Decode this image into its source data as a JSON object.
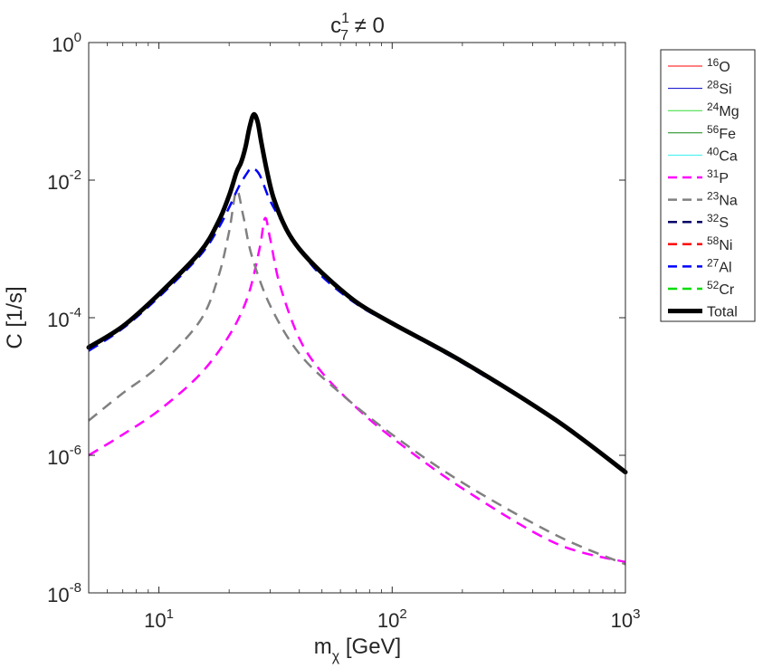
{
  "chart_data": {
    "type": "line",
    "title_base": "c",
    "title_sub": "7",
    "title_sup": "1",
    "title_rest": " ≠ 0",
    "xlabel_base": "m",
    "xlabel_sub": "χ",
    "xlabel_rest": " [GeV]",
    "ylabel": "C [1/s]",
    "xscale": "log",
    "yscale": "log",
    "xlim": [
      5,
      1000
    ],
    "ylim": [
      1e-08,
      1
    ],
    "x_ticks": [
      {
        "value": 10,
        "base": "10",
        "exp": "1"
      },
      {
        "value": 100,
        "base": "10",
        "exp": "2"
      },
      {
        "value": 1000,
        "base": "10",
        "exp": "3"
      }
    ],
    "y_ticks": [
      {
        "value": 1,
        "base": "10",
        "exp": "0"
      },
      {
        "value": 0.01,
        "base": "10",
        "exp": "-2"
      },
      {
        "value": 0.0001,
        "base": "10",
        "exp": "-4"
      },
      {
        "value": 1e-06,
        "base": "10",
        "exp": "-6"
      },
      {
        "value": 1e-08,
        "base": "10",
        "exp": "-8"
      }
    ],
    "legend_position": "outside-right",
    "series": [
      {
        "name": "O",
        "mass": "16",
        "color": "#ff0000",
        "style": "solid",
        "width": 1,
        "values": []
      },
      {
        "name": "Si",
        "mass": "28",
        "color": "#0000cc",
        "style": "solid",
        "width": 1,
        "values": []
      },
      {
        "name": "Mg",
        "mass": "24",
        "color": "#33dd33",
        "style": "solid",
        "width": 1,
        "values": []
      },
      {
        "name": "Fe",
        "mass": "56",
        "color": "#118811",
        "style": "solid",
        "width": 1,
        "values": []
      },
      {
        "name": "Ca",
        "mass": "40",
        "color": "#33eeee",
        "style": "solid",
        "width": 1,
        "values": []
      },
      {
        "name": "P",
        "mass": "31",
        "color": "#ff00ff",
        "style": "dashed",
        "width": 2.5,
        "values": [
          [
            5,
            1e-06
          ],
          [
            7,
            2e-06
          ],
          [
            10,
            4.5e-06
          ],
          [
            15,
            1.5e-05
          ],
          [
            20,
            5.5e-05
          ],
          [
            24,
            0.0002
          ],
          [
            27,
            0.001
          ],
          [
            28.5,
            0.0028
          ],
          [
            30,
            0.0014
          ],
          [
            33,
            0.0003
          ],
          [
            40,
            5e-05
          ],
          [
            50,
            1.6e-05
          ],
          [
            70,
            5e-06
          ],
          [
            100,
            1.8e-06
          ],
          [
            200,
            3.3e-07
          ],
          [
            500,
            5.3e-08
          ],
          [
            1000,
            2.8e-08
          ]
        ]
      },
      {
        "name": "Na",
        "mass": "23",
        "color": "#808080",
        "style": "dashed",
        "width": 2.5,
        "values": [
          [
            5,
            3.2e-06
          ],
          [
            7,
            8e-06
          ],
          [
            10,
            2e-05
          ],
          [
            15,
            9e-05
          ],
          [
            18,
            0.0004
          ],
          [
            20,
            0.0018
          ],
          [
            21.5,
            0.007
          ],
          [
            23,
            0.003
          ],
          [
            25,
            0.0008
          ],
          [
            30,
            0.00015
          ],
          [
            40,
            3e-05
          ],
          [
            60,
            8e-06
          ],
          [
            100,
            2e-06
          ],
          [
            200,
            4e-07
          ],
          [
            500,
            7e-08
          ],
          [
            1000,
            2.6e-08
          ]
        ]
      },
      {
        "name": "S",
        "mass": "32",
        "color": "#000066",
        "style": "dashed",
        "width": 2.5,
        "values": []
      },
      {
        "name": "Ni",
        "mass": "58",
        "color": "#ff0000",
        "style": "dashed",
        "width": 2.5,
        "values": []
      },
      {
        "name": "Al",
        "mass": "27",
        "color": "#0000ff",
        "style": "dashed",
        "width": 2.5,
        "values": [
          [
            5,
            3.3e-05
          ],
          [
            7,
            7e-05
          ],
          [
            10,
            0.0002
          ],
          [
            15,
            0.0008
          ],
          [
            18,
            0.002
          ],
          [
            20,
            0.004
          ],
          [
            22,
            0.008
          ],
          [
            24,
            0.013
          ],
          [
            25,
            0.015
          ],
          [
            27,
            0.012
          ],
          [
            30,
            0.005
          ],
          [
            35,
            0.002
          ],
          [
            40,
            0.001
          ],
          [
            50,
            0.0004
          ],
          [
            70,
            0.00016
          ],
          [
            100,
            8e-05
          ],
          [
            200,
            2.2e-05
          ],
          [
            500,
            3.2e-06
          ],
          [
            1000,
            5.5e-07
          ]
        ]
      },
      {
        "name": "Cr",
        "mass": "52",
        "color": "#00dd00",
        "style": "dashed",
        "width": 2.5,
        "values": []
      },
      {
        "name": "Total",
        "mass": "",
        "color": "#000000",
        "style": "solid",
        "width": 5,
        "values": [
          [
            5,
            3.7e-05
          ],
          [
            7,
            7.5e-05
          ],
          [
            10,
            0.00022
          ],
          [
            15,
            0.0009
          ],
          [
            18,
            0.0025
          ],
          [
            20,
            0.006
          ],
          [
            21.5,
            0.013
          ],
          [
            22.5,
            0.018
          ],
          [
            23.5,
            0.03
          ],
          [
            24.5,
            0.06
          ],
          [
            25.5,
            0.09
          ],
          [
            26.5,
            0.07
          ],
          [
            27.5,
            0.035
          ],
          [
            29,
            0.014
          ],
          [
            31,
            0.0055
          ],
          [
            35,
            0.002
          ],
          [
            40,
            0.001
          ],
          [
            50,
            0.00045
          ],
          [
            70,
            0.00017
          ],
          [
            100,
            8.3e-05
          ],
          [
            200,
            2.3e-05
          ],
          [
            500,
            3.3e-06
          ],
          [
            1000,
            5.7e-07
          ]
        ]
      }
    ]
  }
}
